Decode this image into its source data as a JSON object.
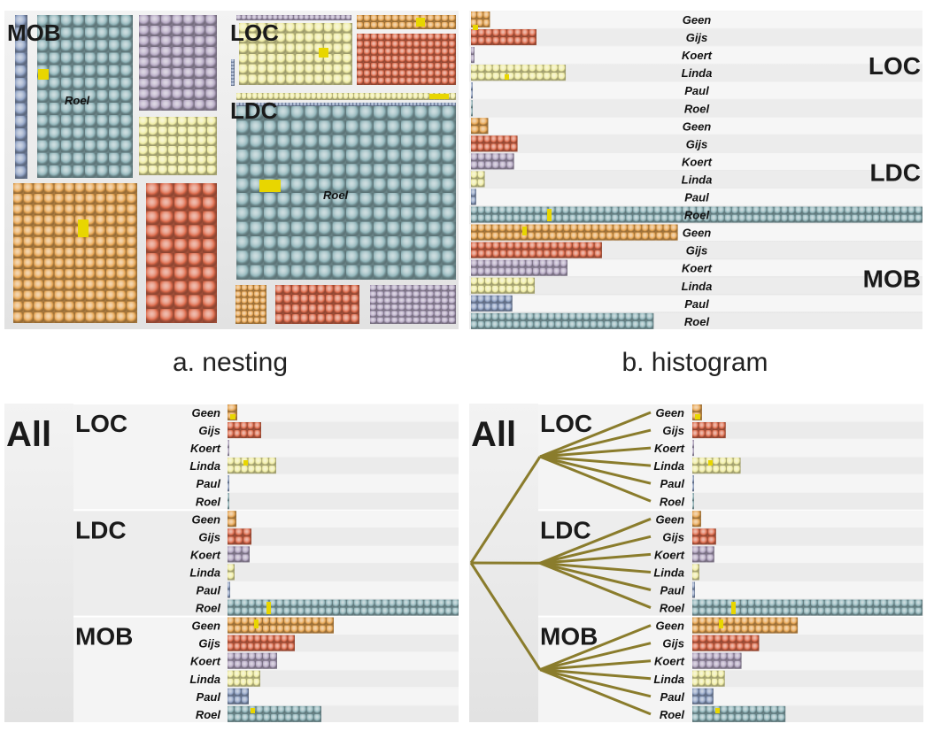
{
  "captions": {
    "nesting": "a. nesting",
    "histogram": "b. histogram"
  },
  "top_label_all": "All",
  "groups": [
    "LOC",
    "LDC",
    "MOB"
  ],
  "people": [
    "Geen",
    "Gijs",
    "Koert",
    "Linda",
    "Paul",
    "Roel"
  ],
  "colors": {
    "Geen": "#e6a553",
    "Gijs": "#dc6b4c",
    "Koert": "#b3a6c1",
    "Linda": "#efeca4",
    "Paul": "#8ea0c2",
    "Roel": "#8fb3b8",
    "highlight": "#e8d600",
    "branch": "#8a7c2c"
  },
  "nesting_labels": {
    "mob": "MOB",
    "loc": "LOC",
    "ldc": "LDC",
    "roel_small": "Roel",
    "roel_large": "Roel"
  },
  "chart_data": {
    "type": "bar",
    "categories": [
      "Geen",
      "Gijs",
      "Koert",
      "Linda",
      "Paul",
      "Roel"
    ],
    "series": [
      {
        "name": "LOC",
        "values": [
          11,
          38,
          2,
          55,
          1,
          1
        ]
      },
      {
        "name": "LDC",
        "values": [
          10,
          27,
          25,
          8,
          3,
          262
        ]
      },
      {
        "name": "MOB",
        "values": [
          120,
          76,
          56,
          37,
          24,
          106
        ]
      }
    ]
  }
}
